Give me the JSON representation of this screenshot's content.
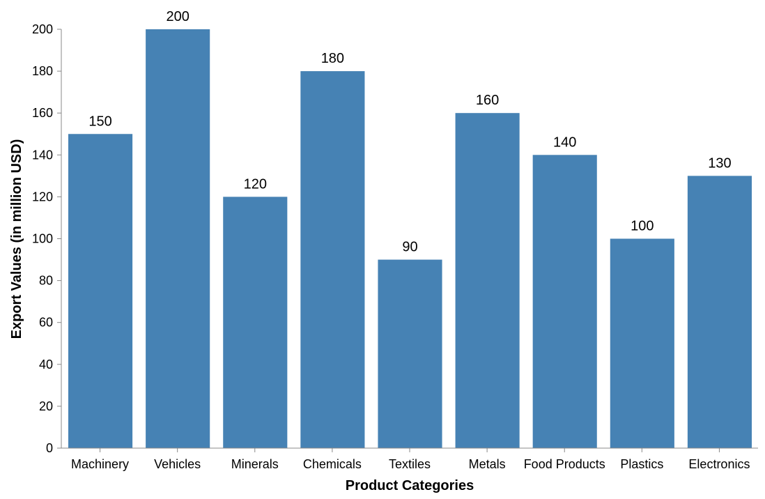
{
  "chart_data": {
    "type": "bar",
    "title": "",
    "xlabel": "Product Categories",
    "ylabel": "Export Values (in million USD)",
    "categories": [
      "Machinery",
      "Vehicles",
      "Minerals",
      "Chemicals",
      "Textiles",
      "Metals",
      "Food Products",
      "Plastics",
      "Electronics"
    ],
    "values": [
      150,
      200,
      120,
      180,
      90,
      160,
      140,
      100,
      130
    ],
    "ylim": [
      0,
      200
    ],
    "yticks": [
      0,
      20,
      40,
      60,
      80,
      100,
      120,
      140,
      160,
      180,
      200
    ],
    "data_labels": true,
    "grid": false,
    "colors": {
      "bar": "#4682b4",
      "axis": "#888888",
      "text": "#000000"
    }
  }
}
